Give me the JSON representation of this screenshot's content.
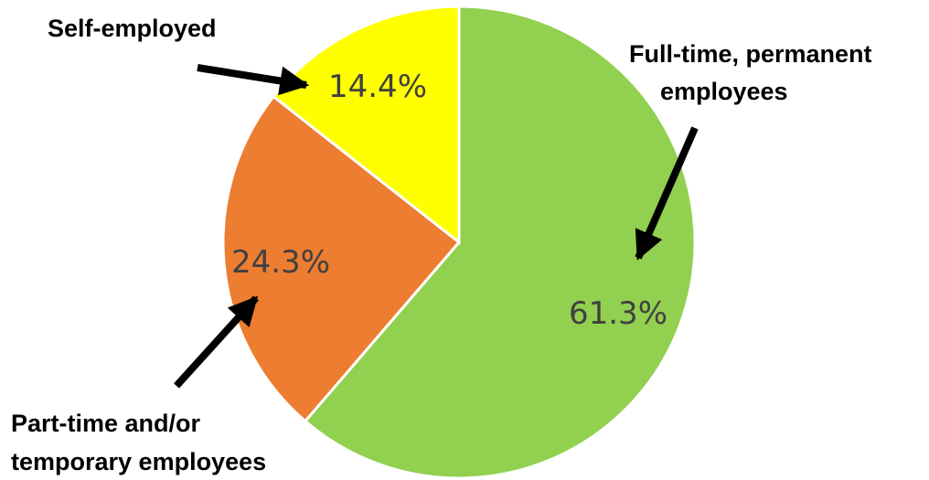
{
  "chart_data": {
    "type": "pie",
    "categories": [
      "Full-time, permanent employees",
      "Part-time and/or temporary employees",
      "Self-employed"
    ],
    "values": [
      61.3,
      24.3,
      14.4
    ],
    "value_labels": [
      "61.3%",
      "24.3%",
      "14.4%"
    ],
    "category_label_lines": [
      [
        "Full-time, permanent",
        "employees"
      ],
      [
        "Part-time and/or",
        "temporary employees"
      ],
      [
        "Self-employed"
      ]
    ],
    "colors": [
      "#92d050",
      "#ed7d31",
      "#ffff00"
    ],
    "start": "12 o'clock",
    "direction": "clockwise",
    "legend": "none",
    "title": ""
  }
}
